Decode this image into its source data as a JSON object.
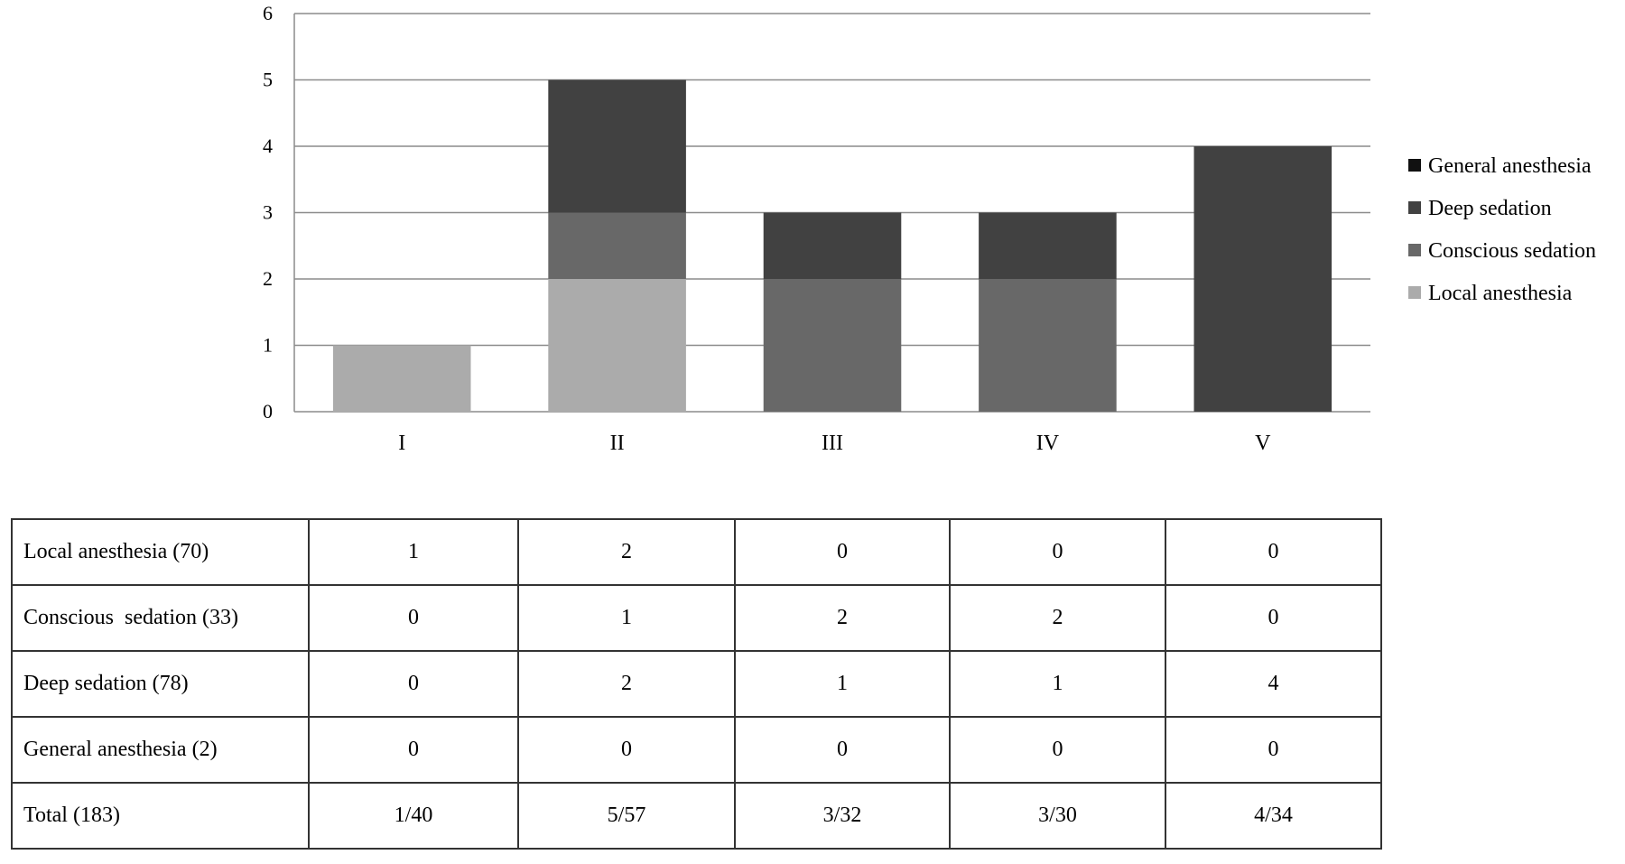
{
  "chart_data": {
    "type": "bar",
    "stacked": true,
    "categories": [
      "I",
      "II",
      "III",
      "IV",
      "V"
    ],
    "ylim": [
      0,
      6
    ],
    "yticks": [
      0,
      1,
      2,
      3,
      4,
      5,
      6
    ],
    "grid": true,
    "legend_position": "right",
    "series": [
      {
        "name": "Local anesthesia",
        "color": "#ababab",
        "values": [
          1,
          2,
          0,
          0,
          0
        ]
      },
      {
        "name": "Conscious sedation",
        "color": "#686868",
        "values": [
          0,
          1,
          2,
          2,
          0
        ]
      },
      {
        "name": "Deep sedation",
        "color": "#414141",
        "values": [
          0,
          2,
          1,
          1,
          4
        ]
      },
      {
        "name": "General anesthesia",
        "color": "#111111",
        "values": [
          0,
          0,
          0,
          0,
          0
        ]
      }
    ],
    "legend_order": [
      "General anesthesia",
      "Deep sedation",
      "Conscious sedation",
      "Local anesthesia"
    ]
  },
  "table": {
    "rows": [
      {
        "label": "Local anesthesia (70)",
        "cells": [
          "1",
          "2",
          "0",
          "0",
          "0"
        ]
      },
      {
        "label": "Conscious  sedation (33)",
        "cells": [
          "0",
          "1",
          "2",
          "2",
          "0"
        ]
      },
      {
        "label": "Deep sedation (78)",
        "cells": [
          "0",
          "2",
          "1",
          "1",
          "4"
        ]
      },
      {
        "label": "General anesthesia (2)",
        "cells": [
          "0",
          "0",
          "0",
          "0",
          "0"
        ]
      },
      {
        "label": "Total (183)",
        "cells": [
          "1/40",
          "5/57",
          "3/32",
          "3/30",
          "4/34"
        ]
      }
    ]
  }
}
